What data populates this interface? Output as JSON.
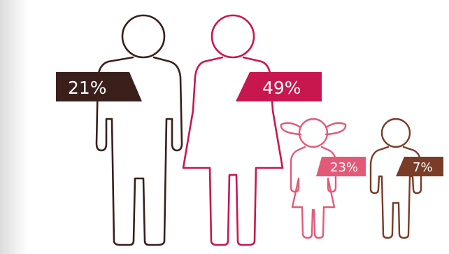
{
  "chart_data": {
    "type": "pictogram",
    "categories": [
      "man",
      "woman",
      "girl",
      "boy"
    ],
    "values": [
      21,
      49,
      23,
      7
    ],
    "unit": "%",
    "data_labels": [
      "21%",
      "49%",
      "23%",
      "7%"
    ],
    "title": "",
    "xlabel": "",
    "ylabel": ""
  },
  "colors": {
    "background": "#ececec",
    "panel": "#ffffff",
    "man": "#3a1f1a",
    "woman": "#c8174f",
    "girl": "#e35a78",
    "boy": "#7a3b27"
  },
  "icons": [
    "man-icon",
    "woman-icon",
    "girl-icon",
    "boy-icon"
  ]
}
